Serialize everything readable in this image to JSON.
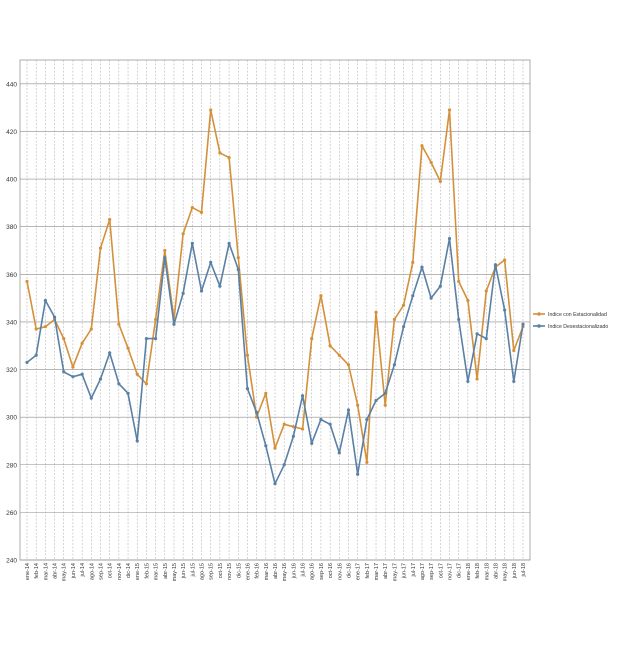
{
  "chart_data": {
    "type": "line",
    "title": "",
    "xlabel": "",
    "ylabel": "",
    "ylim": [
      240,
      450
    ],
    "yticks": [
      240,
      260,
      280,
      300,
      320,
      340,
      360,
      380,
      400,
      420,
      440
    ],
    "grid": true,
    "legend_position": "right",
    "categories": [
      "ene-14",
      "feb-14",
      "mar-14",
      "abr-14",
      "may-14",
      "jun-14",
      "jul-14",
      "ago-14",
      "sep-14",
      "oct-14",
      "nov-14",
      "dic-14",
      "ene-15",
      "feb-15",
      "mar-15",
      "abr-15",
      "may-15",
      "jun-15",
      "jul-15",
      "ago-15",
      "sep-15",
      "oct-15",
      "nov-15",
      "dic-15",
      "ene-16",
      "feb-16",
      "mar-16",
      "abr-16",
      "may-16",
      "jun-16",
      "jul-16",
      "ago-16",
      "sep-16",
      "oct-16",
      "nov-16",
      "dic-16",
      "ene-17",
      "feb-17",
      "mar-17",
      "abr-17",
      "may-17",
      "jun-17",
      "jul-17",
      "ago-17",
      "sep-17",
      "oct-17",
      "nov-17",
      "dic-17",
      "ene-18",
      "feb-18",
      "mar-18",
      "abr-18",
      "may-18",
      "jun-18",
      "jul-18"
    ],
    "series": [
      {
        "name": "Indice con Estacionalidad",
        "color": "#d4903a",
        "values": [
          357,
          337,
          338,
          341,
          333,
          321,
          331,
          337,
          371,
          383,
          339,
          329,
          318,
          314,
          341,
          370,
          341,
          377,
          388,
          386,
          429,
          411,
          409,
          367,
          326,
          300,
          310,
          287,
          297,
          296,
          295,
          333,
          351,
          330,
          326,
          322,
          305,
          281,
          344,
          305,
          341,
          347,
          365,
          414,
          407,
          399,
          429,
          357,
          349,
          316,
          353,
          363,
          366,
          328,
          338
        ]
      },
      {
        "name": "Indice Desestacionalizado",
        "color": "#5a80a6",
        "values": [
          323,
          326,
          349,
          342,
          319,
          317,
          318,
          308,
          316,
          327,
          314,
          310,
          290,
          333,
          333,
          367,
          339,
          352,
          373,
          353,
          365,
          355,
          373,
          362,
          312,
          302,
          288,
          272,
          280,
          292,
          309,
          289,
          299,
          297,
          285,
          303,
          276,
          299,
          307,
          310,
          322,
          338,
          351,
          363,
          350,
          355,
          375,
          341,
          315,
          335,
          333,
          364,
          345,
          315,
          339
        ]
      }
    ]
  }
}
